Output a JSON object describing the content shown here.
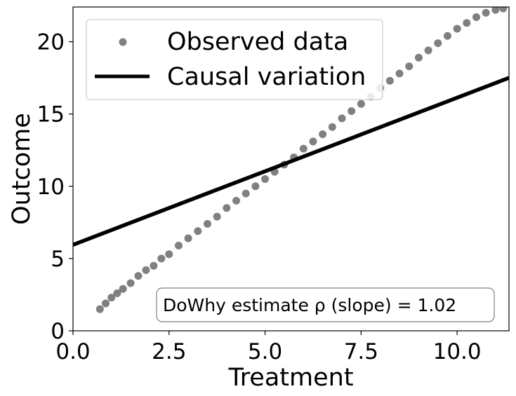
{
  "chart_data": {
    "type": "scatter",
    "xlabel": "Treatment",
    "ylabel": "Outcome",
    "xlim": [
      0.0,
      11.35
    ],
    "ylim": [
      0,
      22.4
    ],
    "xticks": [
      0.0,
      2.5,
      5.0,
      7.5,
      10.0
    ],
    "xtick_labels": [
      "0.0",
      "2.5",
      "5.0",
      "7.5",
      "10.0"
    ],
    "yticks": [
      0,
      5,
      10,
      15,
      20
    ],
    "ytick_labels": [
      "0",
      "5",
      "10",
      "15",
      "20"
    ],
    "grid": false,
    "legend_position": "top-left",
    "series": [
      {
        "name": "Observed data",
        "kind": "scatter",
        "color": "#808080",
        "x": [
          0.7,
          0.85,
          1.0,
          1.15,
          1.3,
          1.5,
          1.7,
          1.9,
          2.1,
          2.3,
          2.5,
          2.75,
          3.0,
          3.25,
          3.5,
          3.75,
          4.0,
          4.25,
          4.5,
          4.75,
          5.0,
          5.25,
          5.5,
          5.75,
          6.0,
          6.25,
          6.5,
          6.75,
          7.0,
          7.25,
          7.5,
          7.75,
          8.0,
          8.25,
          8.5,
          8.75,
          9.0,
          9.25,
          9.5,
          9.75,
          10.0,
          10.25,
          10.5,
          10.75,
          11.0,
          11.2
        ],
        "y": [
          1.5,
          1.9,
          2.3,
          2.6,
          2.9,
          3.3,
          3.8,
          4.2,
          4.5,
          5.0,
          5.3,
          5.9,
          6.4,
          6.9,
          7.4,
          7.9,
          8.5,
          9.0,
          9.5,
          10.0,
          10.5,
          11.0,
          11.5,
          12.0,
          12.6,
          13.1,
          13.6,
          14.1,
          14.7,
          15.2,
          15.7,
          16.2,
          16.8,
          17.3,
          17.8,
          18.3,
          18.9,
          19.4,
          19.9,
          20.4,
          20.9,
          21.3,
          21.7,
          22.0,
          22.2,
          22.3
        ]
      },
      {
        "name": "Causal variation",
        "kind": "line",
        "color": "#000000",
        "x": [
          0.0,
          11.35
        ],
        "y": [
          5.95,
          17.5
        ]
      }
    ],
    "annotation": "DoWhy estimate ρ (slope) = 1.02"
  }
}
